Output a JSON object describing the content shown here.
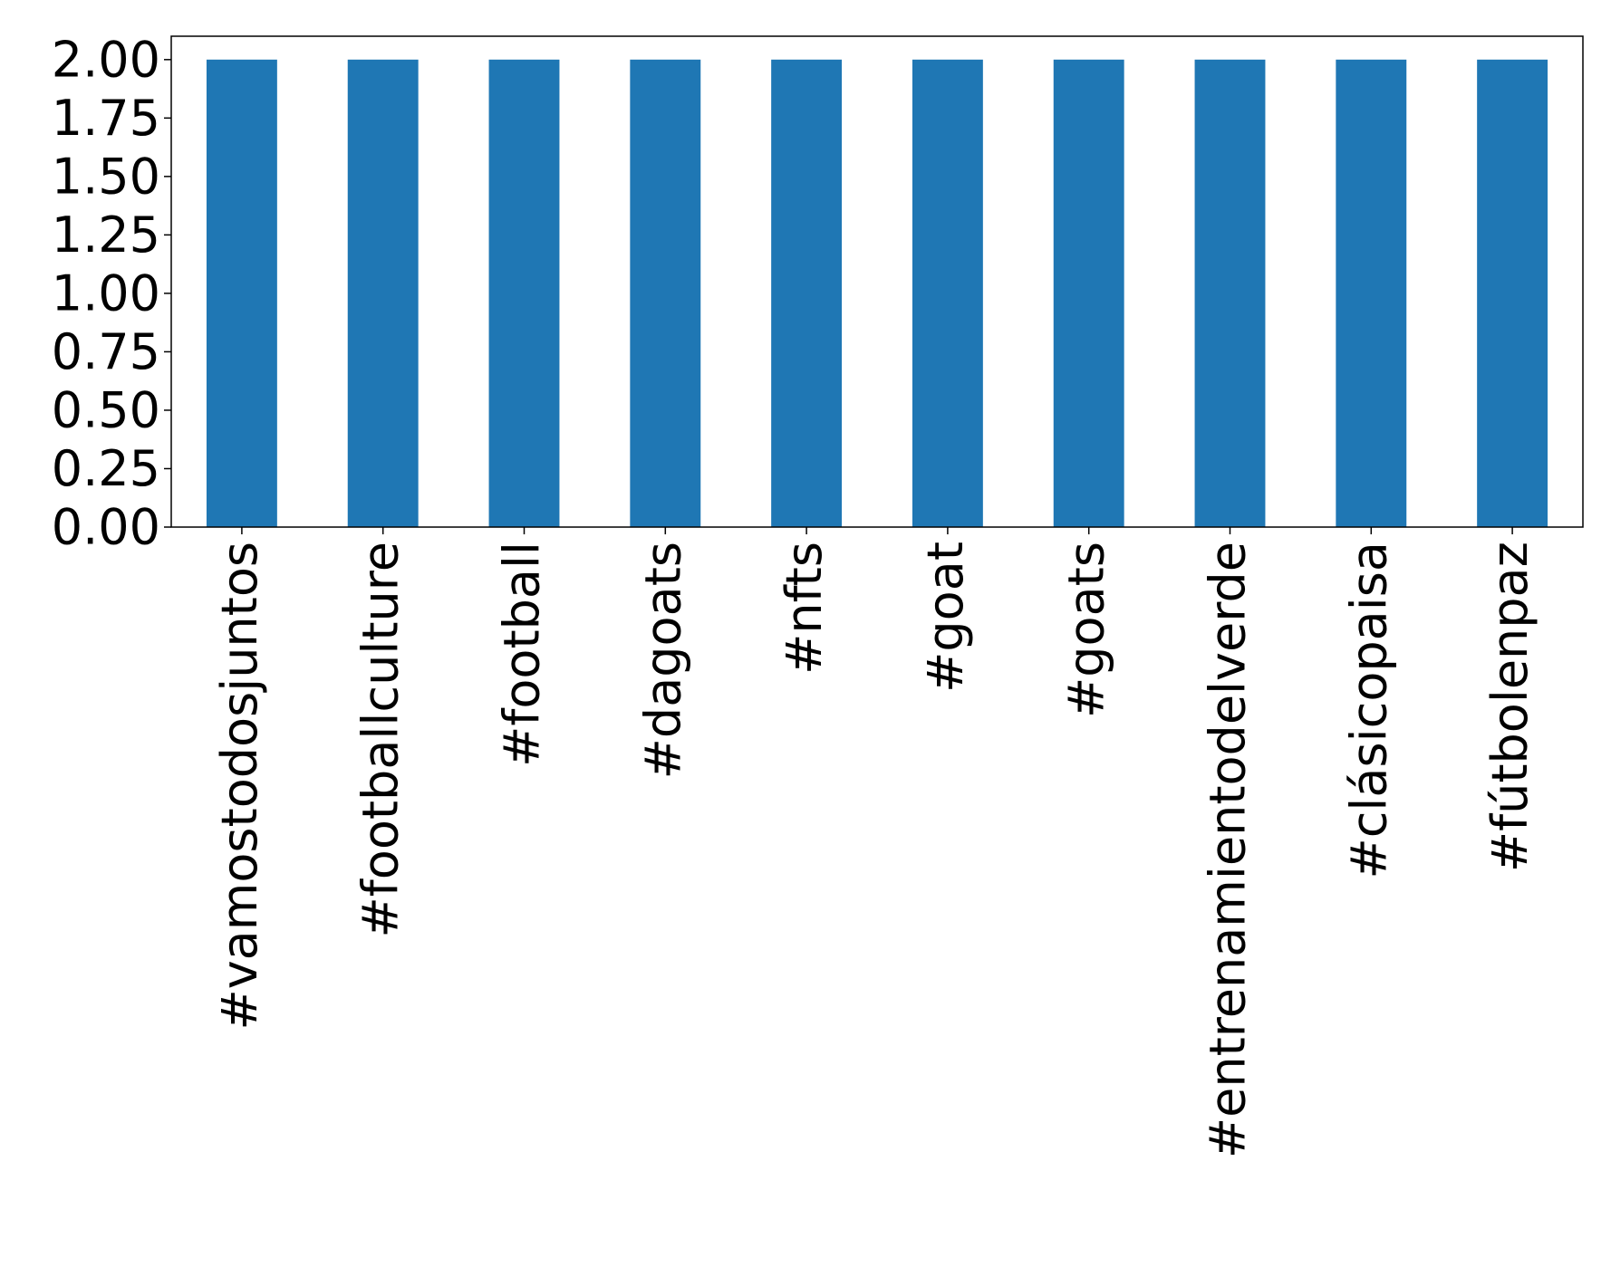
{
  "chart_data": {
    "type": "bar",
    "categories": [
      "#vamostodosjuntos",
      "#footballculture",
      "#football",
      "#dagoats",
      "#nfts",
      "#goat",
      "#goats",
      "#entrenamientodelverde",
      "#clásicopaisa",
      "#fútbolenpaz"
    ],
    "values": [
      2,
      2,
      2,
      2,
      2,
      2,
      2,
      2,
      2,
      2
    ],
    "ylim": [
      0,
      2.1
    ],
    "yticks": [
      "0.00",
      "0.25",
      "0.50",
      "0.75",
      "1.00",
      "1.25",
      "1.50",
      "1.75",
      "2.00"
    ],
    "title": "",
    "xlabel": "",
    "ylabel": "",
    "grid": false,
    "colors": {
      "bar": "#1f77b4",
      "axis": "#000000",
      "background": "#ffffff"
    }
  }
}
